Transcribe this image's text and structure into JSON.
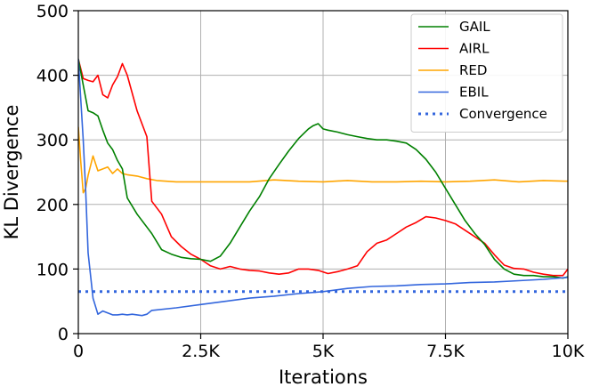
{
  "chart_data": {
    "type": "line",
    "xlabel": "Iterations",
    "ylabel": "KL Divergence",
    "xlim": [
      0,
      10000
    ],
    "ylim": [
      0,
      500
    ],
    "xticks": [
      0,
      2500,
      5000,
      7500,
      10000
    ],
    "xtick_labels": [
      "0",
      "2.5K",
      "5K",
      "7.5K",
      "10K"
    ],
    "yticks": [
      0,
      100,
      200,
      300,
      400,
      500
    ],
    "ytick_labels": [
      "0",
      "100",
      "200",
      "300",
      "400",
      "500"
    ],
    "grid": true,
    "legend_position": "top-right",
    "series": [
      {
        "name": "GAIL",
        "color": "#008000",
        "style": "solid",
        "x": [
          0,
          100,
          200,
          300,
          400,
          500,
          600,
          700,
          800,
          900,
          1000,
          1200,
          1400,
          1500,
          1700,
          1900,
          2100,
          2300,
          2500,
          2700,
          2900,
          3100,
          3300,
          3500,
          3700,
          3900,
          4100,
          4300,
          4500,
          4700,
          4800,
          4900,
          5000,
          5100,
          5300,
          5500,
          5700,
          5900,
          6100,
          6300,
          6500,
          6700,
          6900,
          7100,
          7300,
          7500,
          7700,
          7900,
          8100,
          8300,
          8500,
          8700,
          8900,
          9100,
          9300,
          9500,
          9700,
          9900,
          10000
        ],
        "y": [
          425,
          385,
          345,
          342,
          337,
          315,
          295,
          285,
          268,
          255,
          210,
          185,
          165,
          155,
          130,
          123,
          118,
          116,
          115,
          112,
          120,
          140,
          165,
          190,
          212,
          240,
          262,
          283,
          302,
          317,
          322,
          325,
          317,
          315,
          312,
          308,
          305,
          302,
          300,
          300,
          298,
          295,
          285,
          270,
          250,
          225,
          200,
          175,
          155,
          138,
          115,
          100,
          92,
          90,
          90,
          88,
          88,
          86,
          88
        ]
      },
      {
        "name": "AIRL",
        "color": "#ff0000",
        "style": "solid",
        "x": [
          0,
          100,
          200,
          300,
          400,
          500,
          600,
          700,
          800,
          900,
          1000,
          1200,
          1400,
          1500,
          1700,
          1900,
          2100,
          2300,
          2500,
          2700,
          2900,
          3100,
          3300,
          3500,
          3700,
          3900,
          4100,
          4300,
          4500,
          4700,
          4900,
          5100,
          5300,
          5500,
          5700,
          5900,
          6100,
          6300,
          6500,
          6700,
          6900,
          7100,
          7300,
          7500,
          7700,
          7900,
          8100,
          8300,
          8500,
          8700,
          8900,
          9100,
          9300,
          9500,
          9700,
          9900,
          10000
        ],
        "y": [
          425,
          395,
          392,
          390,
          400,
          370,
          365,
          385,
          398,
          418,
          400,
          345,
          305,
          205,
          185,
          150,
          135,
          123,
          115,
          105,
          100,
          104,
          100,
          98,
          97,
          94,
          92,
          94,
          100,
          100,
          98,
          93,
          96,
          100,
          105,
          127,
          140,
          145,
          155,
          165,
          172,
          181,
          179,
          175,
          170,
          160,
          150,
          140,
          122,
          106,
          101,
          100,
          95,
          92,
          90,
          90,
          100
        ]
      },
      {
        "name": "RED",
        "color": "#ffa500",
        "style": "solid",
        "x": [
          0,
          50,
          100,
          150,
          200,
          300,
          400,
          500,
          600,
          700,
          800,
          900,
          1000,
          1200,
          1400,
          1600,
          2000,
          2500,
          3000,
          3500,
          4000,
          4500,
          5000,
          5500,
          6000,
          6500,
          7000,
          7500,
          8000,
          8500,
          9000,
          9500,
          10000
        ],
        "y": [
          320,
          265,
          218,
          225,
          245,
          275,
          252,
          255,
          258,
          248,
          255,
          248,
          246,
          244,
          240,
          237,
          235,
          235,
          235,
          235,
          238,
          236,
          235,
          237,
          235,
          235,
          236,
          235,
          236,
          238,
          235,
          237,
          236
        ]
      },
      {
        "name": "EBIL",
        "color": "#3366dd",
        "style": "solid",
        "x": [
          0,
          100,
          150,
          200,
          300,
          400,
          500,
          600,
          700,
          800,
          900,
          1000,
          1100,
          1200,
          1300,
          1400,
          1500,
          2000,
          2500,
          3000,
          3500,
          4000,
          4500,
          5000,
          5500,
          6000,
          6500,
          7000,
          7500,
          8000,
          8500,
          9000,
          9500,
          10000
        ],
        "y": [
          425,
          300,
          220,
          125,
          55,
          30,
          35,
          32,
          29,
          29,
          30,
          29,
          30,
          29,
          28,
          30,
          36,
          40,
          45,
          50,
          55,
          58,
          62,
          65,
          70,
          73,
          74,
          76,
          77,
          79,
          80,
          82,
          84,
          87
        ]
      },
      {
        "name": "Convergence",
        "color": "#3366dd",
        "style": "dotted",
        "x": [
          0,
          10000
        ],
        "y": [
          65,
          65
        ]
      }
    ]
  }
}
